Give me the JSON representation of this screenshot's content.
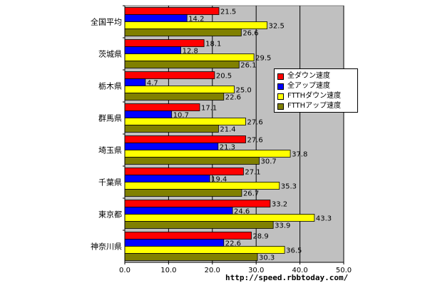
{
  "chart_data": {
    "type": "bar",
    "orientation": "horizontal",
    "categories": [
      "全国平均",
      "茨城県",
      "栃木県",
      "群馬県",
      "埼玉県",
      "千葉県",
      "東京都",
      "神奈川県"
    ],
    "series": [
      {
        "name": "全ダウン速度",
        "color": "#ff0000",
        "values": [
          21.5,
          18.1,
          20.5,
          17.1,
          27.6,
          27.1,
          33.2,
          28.9
        ],
        "labels": [
          "21.5",
          "18.1",
          "20.5",
          "17.1",
          "27.6",
          "27.1",
          "33.2",
          "28.9"
        ]
      },
      {
        "name": "全アップ速度",
        "color": "#0000ff",
        "values": [
          14.2,
          12.8,
          4.7,
          10.7,
          21.3,
          19.4,
          24.6,
          22.6
        ],
        "labels": [
          "14.2",
          "12.8",
          "4.7",
          "10.7",
          "21.3",
          "19.4",
          "24.6",
          "22.6"
        ]
      },
      {
        "name": "FTTHダウン速度",
        "color": "#ffff00",
        "values": [
          32.5,
          29.5,
          25.0,
          27.6,
          37.8,
          35.3,
          43.3,
          36.5
        ],
        "labels": [
          "32.5",
          "29.5",
          "25.0",
          "27.6",
          "37.8",
          "35.3",
          "43.3",
          "36.5"
        ]
      },
      {
        "name": "FTTHアップ速度",
        "color": "#808000",
        "values": [
          26.6,
          26.1,
          22.6,
          21.4,
          30.7,
          26.7,
          33.9,
          30.3
        ],
        "labels": [
          "26.6",
          "26.1",
          "22.6",
          "21.4",
          "30.7",
          "26.7",
          "33.9",
          "30.3"
        ]
      }
    ],
    "xlim": [
      0,
      50
    ],
    "xticks": [
      "0.0",
      "10.0",
      "20.0",
      "30.0",
      "40.0",
      "50.0"
    ],
    "grid": true,
    "legend_position": "right"
  },
  "footer": {
    "url": "http://speed.rbbtoday.com/"
  }
}
